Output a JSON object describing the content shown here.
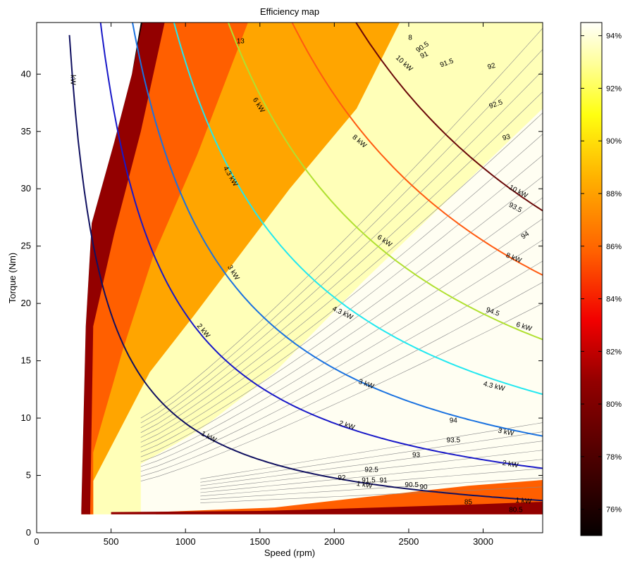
{
  "chart_data": {
    "type": "heatmap",
    "title": "Efficiency map",
    "xlabel": "Speed (rpm)",
    "ylabel": "Torque (Nm)",
    "xlim": [
      0,
      3400
    ],
    "ylim": [
      0,
      44.5
    ],
    "x_ticks": [
      0,
      500,
      1000,
      1500,
      2000,
      2500,
      3000
    ],
    "y_ticks": [
      0,
      5,
      10,
      15,
      20,
      25,
      30,
      35,
      40
    ],
    "grid": false,
    "colormap": "hot",
    "colorbar": {
      "position": "right",
      "range_percent": [
        75,
        94.5
      ],
      "tick_labels": [
        "76%",
        "78%",
        "80%",
        "82%",
        "84%",
        "86%",
        "88%",
        "90%",
        "92%",
        "94%"
      ],
      "tick_values": [
        76,
        78,
        80,
        82,
        84,
        86,
        88,
        90,
        92,
        94
      ]
    },
    "efficiency_bands": [
      {
        "name": "black",
        "color": "#0a0000",
        "boundary_top": [
          [
            300,
            2
          ],
          [
            330,
            18
          ],
          [
            370,
            27
          ],
          [
            520,
            34
          ],
          [
            640,
            40
          ],
          [
            710,
            44.5
          ]
        ]
      },
      {
        "name": "dark-red",
        "color": "#930000",
        "boundary_top": [
          [
            360,
            2
          ],
          [
            380,
            18
          ],
          [
            520,
            26
          ],
          [
            700,
            35
          ],
          [
            860,
            44.5
          ]
        ]
      },
      {
        "name": "orange",
        "color": "#ff5f00",
        "boundary_top": [
          [
            380,
            2
          ],
          [
            380,
            7
          ],
          [
            580,
            16
          ],
          [
            780,
            24
          ],
          [
            1080,
            33
          ],
          [
            1420,
            44.5
          ]
        ]
      },
      {
        "name": "orange-yellow",
        "color": "#ffa500",
        "boundary_top": [
          [
            380,
            4.5
          ],
          [
            560,
            9
          ],
          [
            760,
            14
          ],
          [
            1060,
            19
          ],
          [
            1700,
            30
          ],
          [
            2150,
            37
          ],
          [
            2440,
            44.5
          ]
        ]
      },
      {
        "name": "yellow",
        "color": "#ffff30",
        "boundary_top": [
          [
            380,
            5
          ],
          [
            560,
            10
          ],
          [
            760,
            16
          ],
          [
            1200,
            22
          ],
          [
            1700,
            32
          ],
          [
            2050,
            37
          ],
          [
            2420,
            44.5
          ]
        ]
      },
      {
        "name": "light-yellow",
        "color": "#ffffb8",
        "boundary_top": [
          [
            700,
            6
          ],
          [
            1100,
            9
          ],
          [
            1600,
            14
          ],
          [
            2200,
            22
          ],
          [
            3000,
            32
          ],
          [
            3400,
            37
          ],
          [
            3400,
            44.5
          ]
        ]
      },
      {
        "name": "cream",
        "color": "#fffef2",
        "region": "high-efficiency plateau"
      }
    ],
    "bottom_bands": [
      {
        "name": "bottom-dark-red",
        "color": "#930000",
        "boundary_top": [
          [
            500,
            1.8
          ],
          [
            1500,
            1.9
          ],
          [
            2300,
            2.2
          ],
          [
            3000,
            2.5
          ],
          [
            3400,
            2.7
          ]
        ]
      },
      {
        "name": "bottom-orange",
        "color": "#ff5f00",
        "boundary_top": [
          [
            800,
            1.8
          ],
          [
            1600,
            2.2
          ],
          [
            2200,
            3.1
          ],
          [
            2900,
            4.1
          ],
          [
            3400,
            4.6
          ]
        ]
      }
    ],
    "power_series": [
      {
        "name": "1 kW",
        "power_kw": 1,
        "color": "#101060"
      },
      {
        "name": "2 kW",
        "power_kw": 2,
        "color": "#1818c8"
      },
      {
        "name": "3 kW",
        "power_kw": 3,
        "color": "#1a72e0"
      },
      {
        "name": "4.3 kW",
        "power_kw": 4.3,
        "color": "#22e8f0"
      },
      {
        "name": "6 kW",
        "power_kw": 6,
        "color": "#b0e030"
      },
      {
        "name": "8 kW",
        "power_kw": 8,
        "color": "#ff5a10"
      },
      {
        "name": "10 kW",
        "power_kw": 10,
        "color": "#6a0808"
      }
    ],
    "power_labels": [
      {
        "text": "1 kW",
        "x": 1150,
        "y": 8.2,
        "rot": 28
      },
      {
        "text": "1 kW",
        "x": 2200,
        "y": 4.0,
        "rot": 10
      },
      {
        "text": "1 kW",
        "x": 3270,
        "y": 2.6,
        "rot": 5
      },
      {
        "text": "kW",
        "x": 230,
        "y": 39.5,
        "rot": 90
      },
      {
        "text": "2 kW",
        "x": 1110,
        "y": 17.5,
        "rot": 50
      },
      {
        "text": "2 kW",
        "x": 2080,
        "y": 9.2,
        "rot": 18
      },
      {
        "text": "2 kW",
        "x": 3180,
        "y": 5.8,
        "rot": 10
      },
      {
        "text": "3 kW",
        "x": 1310,
        "y": 22.6,
        "rot": 58
      },
      {
        "text": "3 kW",
        "x": 2210,
        "y": 12.8,
        "rot": 20
      },
      {
        "text": "3 kW",
        "x": 3150,
        "y": 8.6,
        "rot": 12
      },
      {
        "text": "4.3 kW",
        "x": 1290,
        "y": 31.0,
        "rot": 60
      },
      {
        "text": "4.3 kW",
        "x": 2050,
        "y": 19.0,
        "rot": 26
      },
      {
        "text": "4.3 kW",
        "x": 3070,
        "y": 12.6,
        "rot": 14
      },
      {
        "text": "6 kW",
        "x": 1480,
        "y": 37.2,
        "rot": 58
      },
      {
        "text": "6 kW",
        "x": 2330,
        "y": 25.3,
        "rot": 34
      },
      {
        "text": "6 kW",
        "x": 3270,
        "y": 17.8,
        "rot": 18
      },
      {
        "text": "8 kW",
        "x": 2160,
        "y": 34.0,
        "rot": 40
      },
      {
        "text": "8 kW",
        "x": 3200,
        "y": 23.8,
        "rot": 22
      },
      {
        "text": "10 kW",
        "x": 2460,
        "y": 40.8,
        "rot": 42
      },
      {
        "text": "10 kW",
        "x": 3230,
        "y": 29.6,
        "rot": 28
      }
    ],
    "efficiency_labels": [
      {
        "text": "91",
        "x": 2610,
        "y": 41.5,
        "rot": -25
      },
      {
        "text": "91.5",
        "x": 2760,
        "y": 40.8,
        "rot": -20
      },
      {
        "text": "92",
        "x": 3060,
        "y": 40.5,
        "rot": -15
      },
      {
        "text": "92.5",
        "x": 3090,
        "y": 37.2,
        "rot": -20
      },
      {
        "text": "93",
        "x": 3160,
        "y": 34.3,
        "rot": -15
      },
      {
        "text": "93.5",
        "x": 3210,
        "y": 28.2,
        "rot": 28
      },
      {
        "text": "94",
        "x": 3290,
        "y": 25.8,
        "rot": -35
      },
      {
        "text": "94.5",
        "x": 3060,
        "y": 19.1,
        "rot": 20
      },
      {
        "text": "94",
        "x": 2800,
        "y": 9.6,
        "rot": 0
      },
      {
        "text": "93.5",
        "x": 2800,
        "y": 7.9,
        "rot": 0
      },
      {
        "text": "93",
        "x": 2550,
        "y": 6.6,
        "rot": 0
      },
      {
        "text": "92.5",
        "x": 2250,
        "y": 5.3,
        "rot": 0
      },
      {
        "text": "92",
        "x": 2050,
        "y": 4.6,
        "rot": 0
      },
      {
        "text": "91.5",
        "x": 2230,
        "y": 4.4,
        "rot": 0
      },
      {
        "text": "91",
        "x": 2330,
        "y": 4.4,
        "rot": 0
      },
      {
        "text": "90.5",
        "x": 2520,
        "y": 4.0,
        "rot": 0
      },
      {
        "text": "90",
        "x": 2600,
        "y": 3.8,
        "rot": 0
      },
      {
        "text": "85",
        "x": 2900,
        "y": 2.5,
        "rot": 0
      },
      {
        "text": "80.5",
        "x": 3220,
        "y": 1.8,
        "rot": 0
      },
      {
        "text": "90.5",
        "x": 2600,
        "y": 42.2,
        "rot": -35
      },
      {
        "text": "8",
        "x": 2510,
        "y": 43.0,
        "rot": 0
      },
      {
        "text": "13",
        "x": 1370,
        "y": 42.7,
        "rot": 0
      }
    ]
  }
}
